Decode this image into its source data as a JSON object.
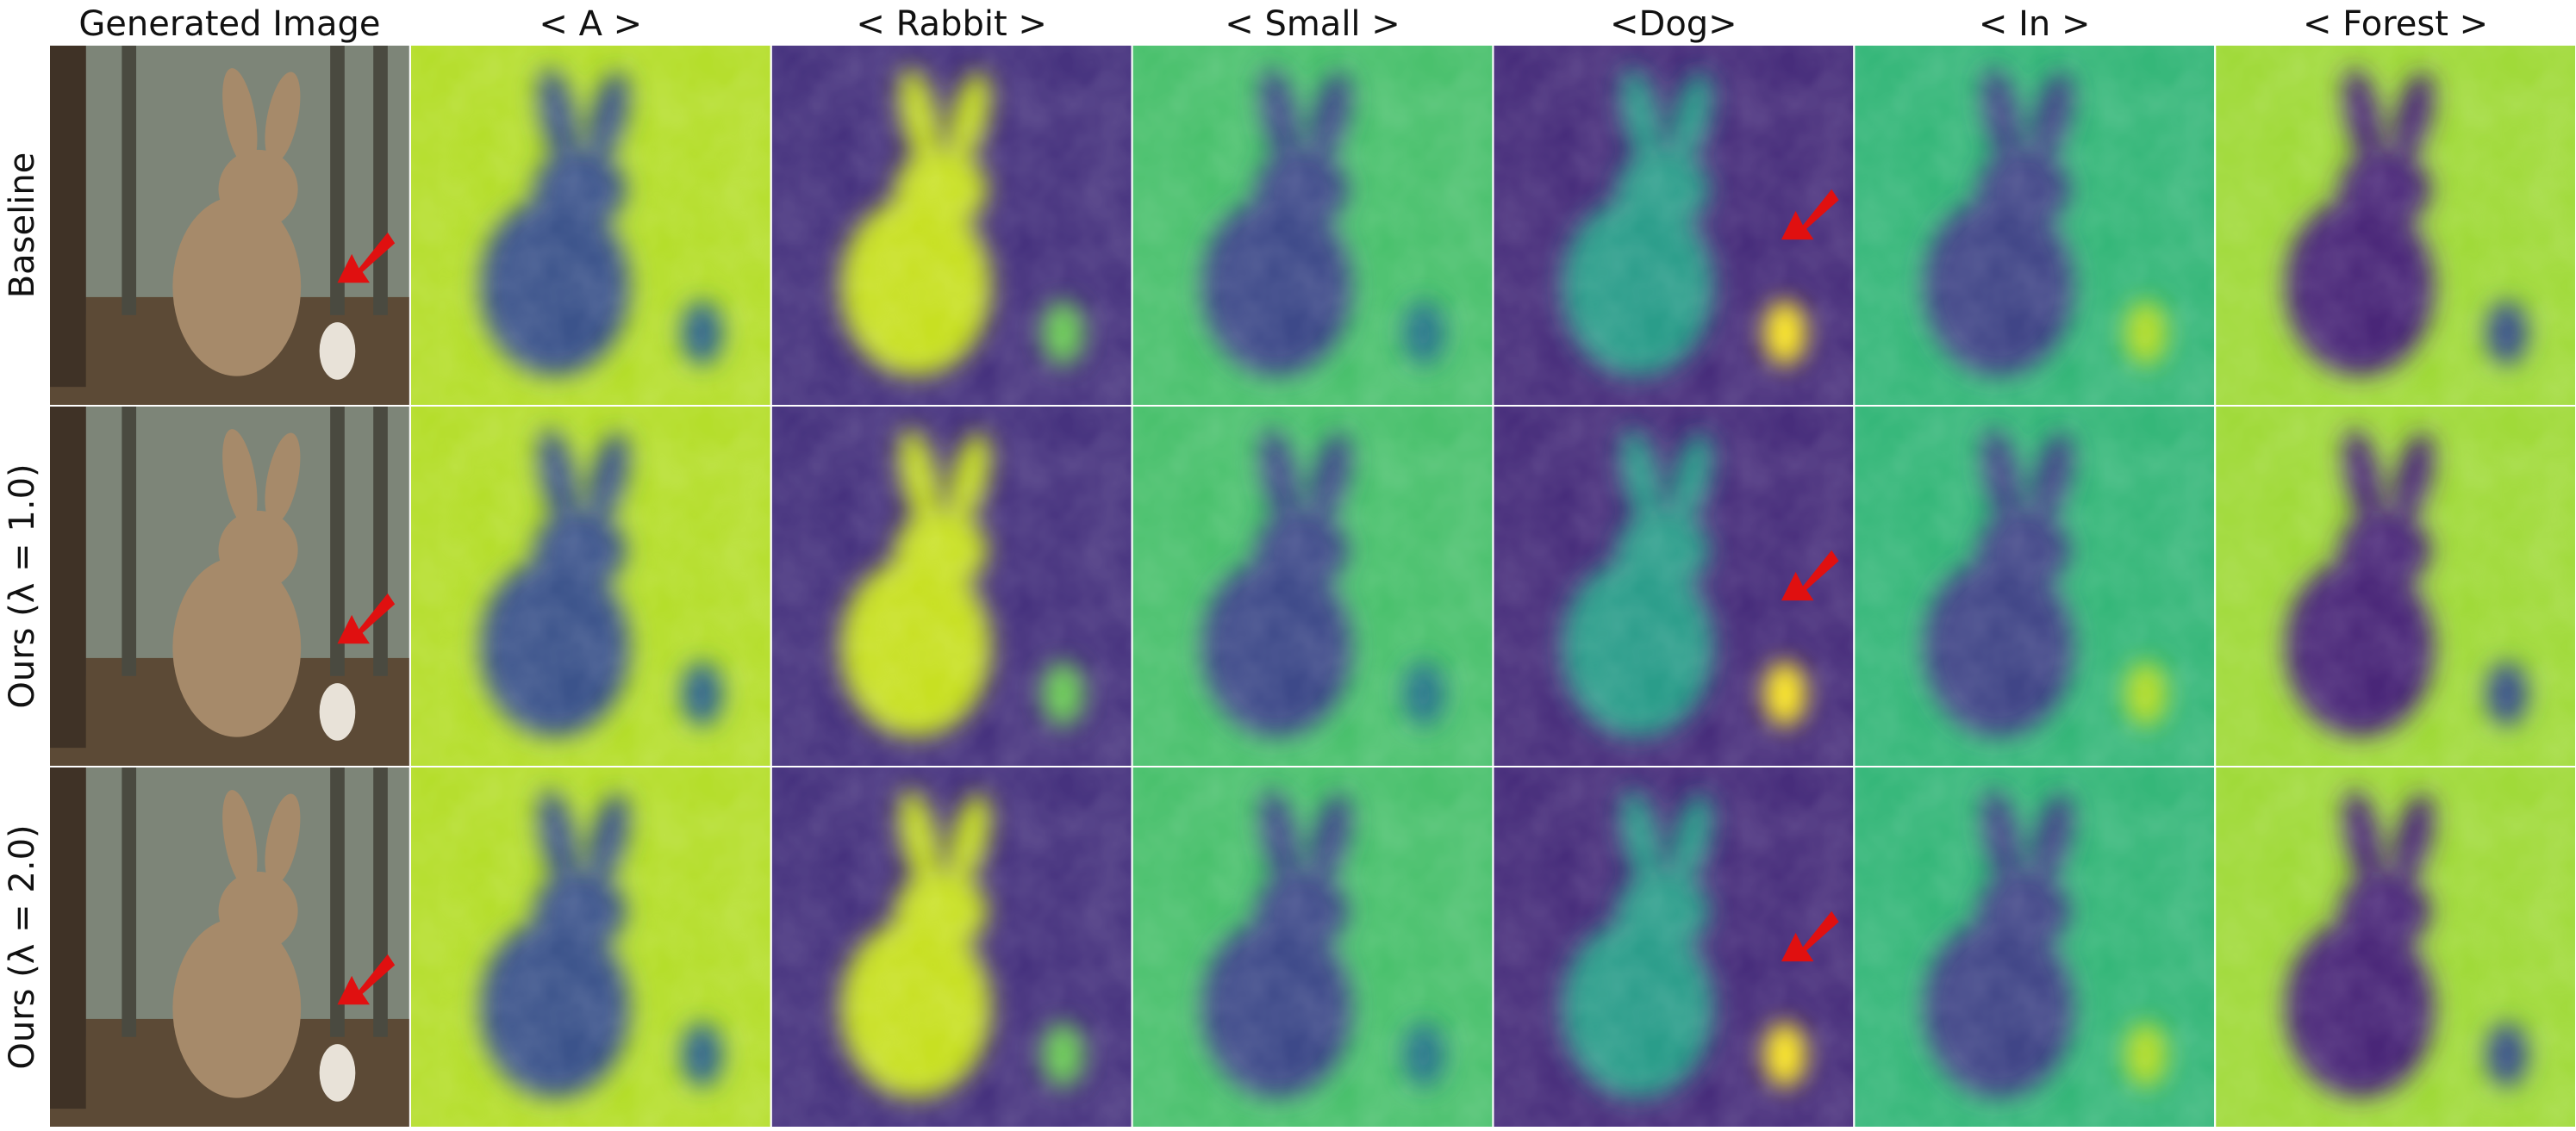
{
  "figure": {
    "column_headers": [
      "Generated Image",
      "< A >",
      "< Rabbit >",
      "< Small >",
      "<Dog>",
      "< In >",
      "< Forest >"
    ],
    "row_labels": [
      "Baseline",
      "Ours (λ = 1.0)",
      "Ours (λ = 2.0)"
    ]
  }
}
